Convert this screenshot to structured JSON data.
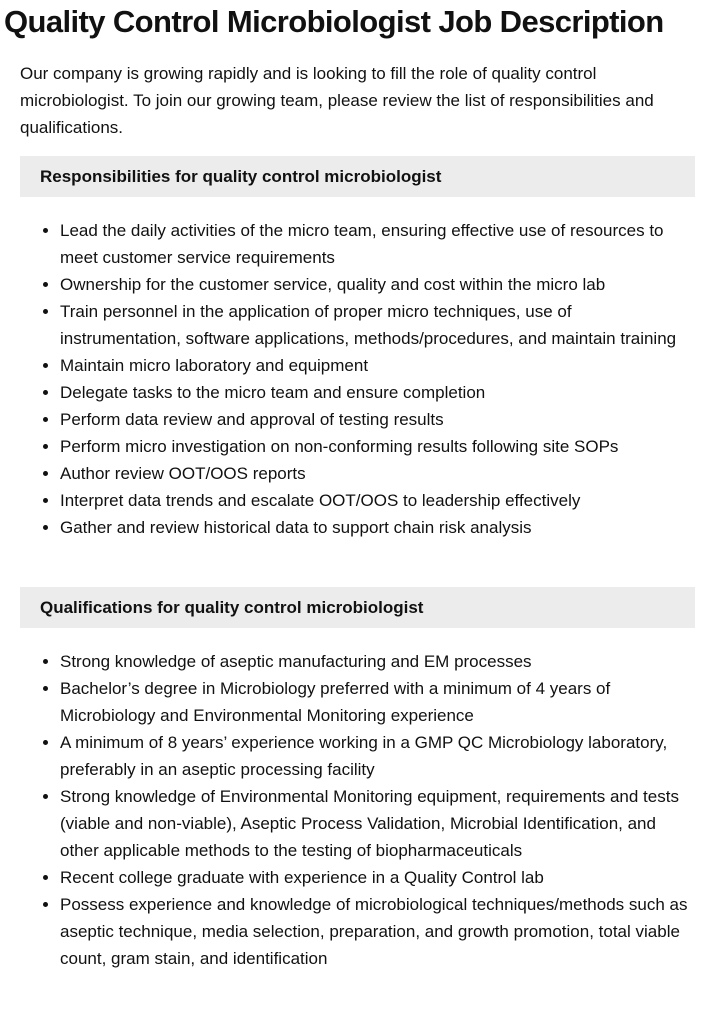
{
  "title": "Quality Control Microbiologist Job Description",
  "intro": "Our company is growing rapidly and is looking to fill the role of quality control microbiologist. To join our growing team, please review the list of responsibilities and qualifications.",
  "responsibilities": {
    "heading": "Responsibilities for quality control microbiologist",
    "items": [
      "Lead the daily activities of the micro team, ensuring effective use of resources to meet customer service requirements",
      "Ownership for the customer service, quality and cost within the micro lab",
      "Train personnel in the application of proper micro techniques, use of instrumentation, software applications, methods/procedures, and maintain training",
      "Maintain micro laboratory and equipment",
      "Delegate tasks to the micro team and ensure completion",
      "Perform data review and approval of testing results",
      "Perform micro investigation on non-conforming results following site SOPs",
      "Author review OOT/OOS reports",
      "Interpret data trends and escalate OOT/OOS to leadership effectively",
      "Gather and review historical data to support chain risk analysis"
    ]
  },
  "qualifications": {
    "heading": "Qualifications for quality control microbiologist",
    "items": [
      "Strong knowledge of aseptic manufacturing and EM processes",
      "Bachelor’s degree in Microbiology preferred with a minimum of 4 years of Microbiology and Environmental Monitoring experience",
      "A minimum of 8 years’ experience working in a GMP QC Microbiology laboratory, preferably in an aseptic processing facility",
      "Strong knowledge of Environmental Monitoring equipment, requirements and tests (viable and non-viable), Aseptic Process Validation, Microbial Identification, and other applicable methods to the testing of biopharmaceuticals",
      "Recent college graduate with experience in a Quality Control lab",
      "Possess experience and knowledge of microbiological techniques/methods such as aseptic technique, media selection, preparation, and growth promotion, total viable count, gram stain, and identification"
    ]
  }
}
